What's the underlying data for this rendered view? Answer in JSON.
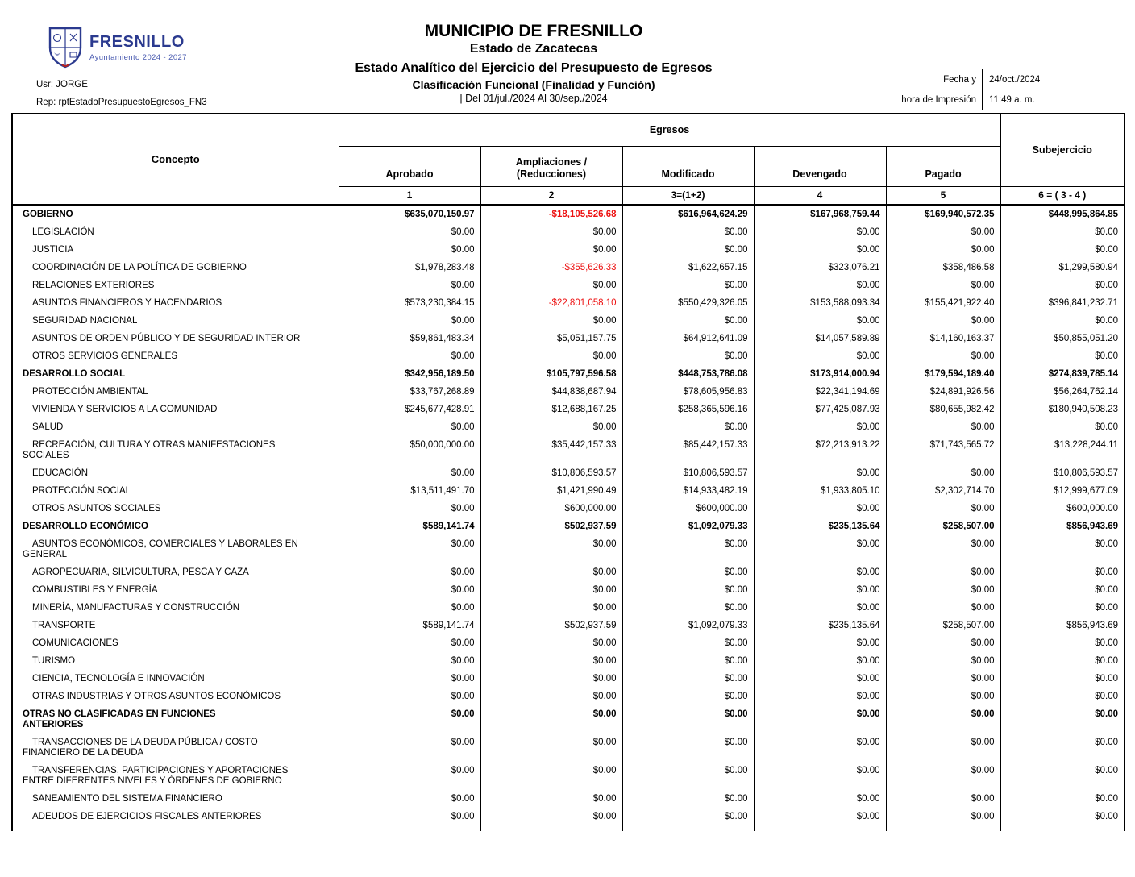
{
  "header": {
    "logo_name": "FRESNILLO",
    "logo_subtitle": "Ayuntamiento 2024 - 2027",
    "usr": "Usr: JORGE",
    "rep": "Rep: rptEstadoPresupuestoEgresos_FN3",
    "title_main": "MUNICIPIO DE FRESNILLO",
    "title_state": "Estado de Zacatecas",
    "title_report": "Estado Analítico del Ejercicio del Presupuesto de Egresos",
    "title_classification": "Clasificación Funcional (Finalidad y Función)",
    "period": "| Del 01/jul./2024 Al 30/sep./2024",
    "print_label_line1": "Fecha y",
    "print_label_line2": "hora de Impresión",
    "print_date": "24/oct./2024",
    "print_time": "11:49 a. m."
  },
  "colors": {
    "negative_amount": "#ed1111",
    "brand_navy": "#2b3a8f"
  },
  "table": {
    "concepto_header": "Concepto",
    "egresos_header": "Egresos",
    "subejercicio_header": "Subejercicio",
    "columns": [
      "Aprobado",
      "Ampliaciones /\n(Reducciones)",
      "Modificado",
      "Devengado",
      "Pagado"
    ],
    "column_numbers": [
      "1",
      "2",
      "3=(1+2)",
      "4",
      "5",
      "6 = ( 3 - 4 )"
    ],
    "rows": [
      {
        "label": "GOBIERNO",
        "bold": true,
        "indent": false,
        "values": [
          "$635,070,150.97",
          "-$18,105,526.68",
          "$616,964,624.29",
          "$167,968,759.44",
          "$169,940,572.35",
          "$448,995,864.85"
        ]
      },
      {
        "label": "LEGISLACIÓN",
        "bold": false,
        "indent": true,
        "values": [
          "$0.00",
          "$0.00",
          "$0.00",
          "$0.00",
          "$0.00",
          "$0.00"
        ]
      },
      {
        "label": "JUSTICIA",
        "bold": false,
        "indent": true,
        "values": [
          "$0.00",
          "$0.00",
          "$0.00",
          "$0.00",
          "$0.00",
          "$0.00"
        ]
      },
      {
        "label": "COORDINACIÓN DE LA POLÍTICA DE GOBIERNO",
        "bold": false,
        "indent": true,
        "values": [
          "$1,978,283.48",
          "-$355,626.33",
          "$1,622,657.15",
          "$323,076.21",
          "$358,486.58",
          "$1,299,580.94"
        ]
      },
      {
        "label": "RELACIONES EXTERIORES",
        "bold": false,
        "indent": true,
        "values": [
          "$0.00",
          "$0.00",
          "$0.00",
          "$0.00",
          "$0.00",
          "$0.00"
        ]
      },
      {
        "label": "ASUNTOS FINANCIEROS Y HACENDARIOS",
        "bold": false,
        "indent": true,
        "values": [
          "$573,230,384.15",
          "-$22,801,058.10",
          "$550,429,326.05",
          "$153,588,093.34",
          "$155,421,922.40",
          "$396,841,232.71"
        ]
      },
      {
        "label": "SEGURIDAD NACIONAL",
        "bold": false,
        "indent": true,
        "values": [
          "$0.00",
          "$0.00",
          "$0.00",
          "$0.00",
          "$0.00",
          "$0.00"
        ]
      },
      {
        "label": "ASUNTOS DE ORDEN PÚBLICO Y DE SEGURIDAD INTERIOR",
        "bold": false,
        "indent": true,
        "values": [
          "$59,861,483.34",
          "$5,051,157.75",
          "$64,912,641.09",
          "$14,057,589.89",
          "$14,160,163.37",
          "$50,855,051.20"
        ]
      },
      {
        "label": "OTROS SERVICIOS GENERALES",
        "bold": false,
        "indent": true,
        "values": [
          "$0.00",
          "$0.00",
          "$0.00",
          "$0.00",
          "$0.00",
          "$0.00"
        ]
      },
      {
        "label": "DESARROLLO SOCIAL",
        "bold": true,
        "indent": false,
        "values": [
          "$342,956,189.50",
          "$105,797,596.58",
          "$448,753,786.08",
          "$173,914,000.94",
          "$179,594,189.40",
          "$274,839,785.14"
        ]
      },
      {
        "label": "PROTECCIÓN AMBIENTAL",
        "bold": false,
        "indent": true,
        "values": [
          "$33,767,268.89",
          "$44,838,687.94",
          "$78,605,956.83",
          "$22,341,194.69",
          "$24,891,926.56",
          "$56,264,762.14"
        ]
      },
      {
        "label": "VIVIENDA Y SERVICIOS  A LA COMUNIDAD",
        "bold": false,
        "indent": true,
        "values": [
          "$245,677,428.91",
          "$12,688,167.25",
          "$258,365,596.16",
          "$77,425,087.93",
          "$80,655,982.42",
          "$180,940,508.23"
        ]
      },
      {
        "label": "SALUD",
        "bold": false,
        "indent": true,
        "values": [
          "$0.00",
          "$0.00",
          "$0.00",
          "$0.00",
          "$0.00",
          "$0.00"
        ]
      },
      {
        "label": "RECREACIÓN, CULTURA Y OTRAS MANIFESTACIONES\nSOCIALES",
        "bold": false,
        "indent": true,
        "values": [
          "$50,000,000.00",
          "$35,442,157.33",
          "$85,442,157.33",
          "$72,213,913.22",
          "$71,743,565.72",
          "$13,228,244.11"
        ]
      },
      {
        "label": "EDUCACIÓN",
        "bold": false,
        "indent": true,
        "values": [
          "$0.00",
          "$10,806,593.57",
          "$10,806,593.57",
          "$0.00",
          "$0.00",
          "$10,806,593.57"
        ]
      },
      {
        "label": "PROTECCIÓN SOCIAL",
        "bold": false,
        "indent": true,
        "values": [
          "$13,511,491.70",
          "$1,421,990.49",
          "$14,933,482.19",
          "$1,933,805.10",
          "$2,302,714.70",
          "$12,999,677.09"
        ]
      },
      {
        "label": "OTROS ASUNTOS SOCIALES",
        "bold": false,
        "indent": true,
        "values": [
          "$0.00",
          "$600,000.00",
          "$600,000.00",
          "$0.00",
          "$0.00",
          "$600,000.00"
        ]
      },
      {
        "label": "DESARROLLO ECONÓMICO",
        "bold": true,
        "indent": false,
        "values": [
          "$589,141.74",
          "$502,937.59",
          "$1,092,079.33",
          "$235,135.64",
          "$258,507.00",
          "$856,943.69"
        ]
      },
      {
        "label": "ASUNTOS ECONÓMICOS, COMERCIALES Y LABORALES EN\nGENERAL",
        "bold": false,
        "indent": true,
        "values": [
          "$0.00",
          "$0.00",
          "$0.00",
          "$0.00",
          "$0.00",
          "$0.00"
        ]
      },
      {
        "label": "AGROPECUARIA, SILVICULTURA, PESCA Y CAZA",
        "bold": false,
        "indent": true,
        "values": [
          "$0.00",
          "$0.00",
          "$0.00",
          "$0.00",
          "$0.00",
          "$0.00"
        ]
      },
      {
        "label": "COMBUSTIBLES Y ENERGÍA",
        "bold": false,
        "indent": true,
        "values": [
          "$0.00",
          "$0.00",
          "$0.00",
          "$0.00",
          "$0.00",
          "$0.00"
        ]
      },
      {
        "label": "MINERÍA, MANUFACTURAS Y CONSTRUCCIÓN",
        "bold": false,
        "indent": true,
        "values": [
          "$0.00",
          "$0.00",
          "$0.00",
          "$0.00",
          "$0.00",
          "$0.00"
        ]
      },
      {
        "label": "TRANSPORTE",
        "bold": false,
        "indent": true,
        "values": [
          "$589,141.74",
          "$502,937.59",
          "$1,092,079.33",
          "$235,135.64",
          "$258,507.00",
          "$856,943.69"
        ]
      },
      {
        "label": "COMUNICACIONES",
        "bold": false,
        "indent": true,
        "values": [
          "$0.00",
          "$0.00",
          "$0.00",
          "$0.00",
          "$0.00",
          "$0.00"
        ]
      },
      {
        "label": "TURISMO",
        "bold": false,
        "indent": true,
        "values": [
          "$0.00",
          "$0.00",
          "$0.00",
          "$0.00",
          "$0.00",
          "$0.00"
        ]
      },
      {
        "label": "CIENCIA, TECNOLOGÍA E INNOVACIÓN",
        "bold": false,
        "indent": true,
        "values": [
          "$0.00",
          "$0.00",
          "$0.00",
          "$0.00",
          "$0.00",
          "$0.00"
        ]
      },
      {
        "label": "OTRAS INDUSTRIAS Y OTROS ASUNTOS ECONÓMICOS",
        "bold": false,
        "indent": true,
        "values": [
          "$0.00",
          "$0.00",
          "$0.00",
          "$0.00",
          "$0.00",
          "$0.00"
        ]
      },
      {
        "label": "OTRAS NO CLASIFICADAS EN FUNCIONES\nANTERIORES",
        "bold": true,
        "indent": false,
        "values": [
          "$0.00",
          "$0.00",
          "$0.00",
          "$0.00",
          "$0.00",
          "$0.00"
        ]
      },
      {
        "label": "TRANSACCIONES DE LA DEUDA PÚBLICA / COSTO\nFINANCIERO DE LA DEUDA",
        "bold": false,
        "indent": true,
        "values": [
          "$0.00",
          "$0.00",
          "$0.00",
          "$0.00",
          "$0.00",
          "$0.00"
        ]
      },
      {
        "label": "TRANSFERENCIAS, PARTICIPACIONES Y APORTACIONES\nENTRE DIFERENTES NIVELES Y ÓRDENES DE GOBIERNO",
        "bold": false,
        "indent": true,
        "values": [
          "$0.00",
          "$0.00",
          "$0.00",
          "$0.00",
          "$0.00",
          "$0.00"
        ]
      },
      {
        "label": "SANEAMIENTO DEL SISTEMA FINANCIERO",
        "bold": false,
        "indent": true,
        "values": [
          "$0.00",
          "$0.00",
          "$0.00",
          "$0.00",
          "$0.00",
          "$0.00"
        ]
      },
      {
        "label": "ADEUDOS DE EJERCICIOS FISCALES ANTERIORES",
        "bold": false,
        "indent": true,
        "values": [
          "$0.00",
          "$0.00",
          "$0.00",
          "$0.00",
          "$0.00",
          "$0.00"
        ]
      }
    ]
  }
}
